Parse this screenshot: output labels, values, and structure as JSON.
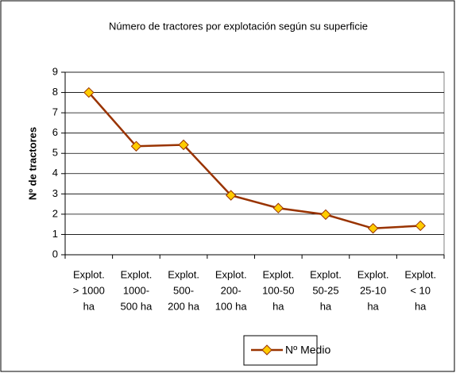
{
  "chart_data": {
    "type": "line",
    "title": "Número de tractores por explotación según su superficie",
    "y_label": "Nº de tractores",
    "categories": [
      [
        "Explot.",
        "> 1000",
        "ha"
      ],
      [
        "Explot.",
        "1000-",
        "500 ha"
      ],
      [
        "Explot.",
        "500-",
        "200 ha"
      ],
      [
        "Explot.",
        "200-",
        "100 ha"
      ],
      [
        "Explot.",
        "100-50",
        "ha"
      ],
      [
        "Explot.",
        "50-25",
        "ha"
      ],
      [
        "Explot.",
        "25-10",
        "ha"
      ],
      [
        "Explot.",
        "< 10",
        "ha"
      ]
    ],
    "series": [
      {
        "name": "Nº Medio",
        "color": "#993300",
        "marker_color": "#ffcc00",
        "values": [
          8,
          5.35,
          5.42,
          2.93,
          2.3,
          1.98,
          1.3,
          1.43
        ]
      }
    ],
    "ylim": [
      0,
      9
    ],
    "yticks": [
      0,
      1,
      2,
      3,
      4,
      5,
      6,
      7,
      8,
      9
    ],
    "grid": true,
    "legend": "bottom"
  }
}
